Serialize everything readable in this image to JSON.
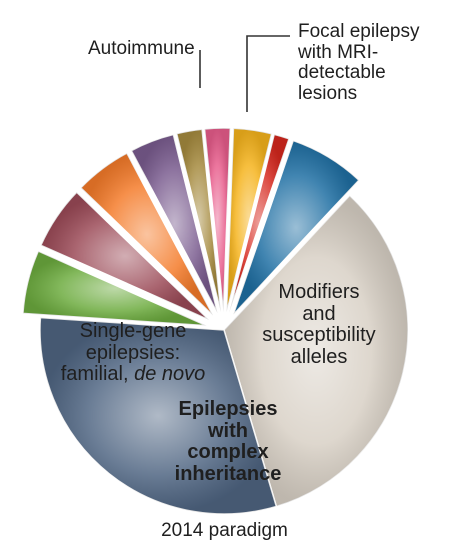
{
  "chart_data": {
    "type": "pie",
    "title": "",
    "caption": "2014 paradigm",
    "slices": [
      {
        "label": "Focal epilepsy with MRI-detectable lesions",
        "value": 6.0,
        "color": "#1f6fa3",
        "exploded": true
      },
      {
        "label": "Modifiers and susceptibility alleles",
        "value": 30.0,
        "color": "#d8d0c5",
        "exploded": false
      },
      {
        "label": "Epilepsies with complex inheritance",
        "value": 27.5,
        "color": "#4f6582",
        "exploded": false
      },
      {
        "label": "",
        "value": 5.0,
        "color": "#6cab3e",
        "exploded": true,
        "group": "Single-gene epilepsies: familial, de novo"
      },
      {
        "label": "",
        "value": 5.0,
        "color": "#9b4a57",
        "exploded": true,
        "group": "Single-gene epilepsies: familial, de novo"
      },
      {
        "label": "",
        "value": 4.5,
        "color": "#f47b2a",
        "exploded": true,
        "group": "Single-gene epilepsies: familial, de novo"
      },
      {
        "label": "",
        "value": 3.5,
        "color": "#7a5c8f",
        "exploded": true,
        "group": "Single-gene epilepsies: familial, de novo"
      },
      {
        "label": "",
        "value": 2.0,
        "color": "#a58a3e",
        "exploded": true,
        "group": "Single-gene epilepsies: familial, de novo"
      },
      {
        "label": "",
        "value": 2.0,
        "color": "#e85d8c",
        "exploded": true,
        "group": "Single-gene epilepsies: familial, de novo"
      },
      {
        "label": "",
        "value": 3.0,
        "color": "#f5b31c",
        "exploded": true,
        "group": "Single-gene epilepsies: familial, de novo"
      },
      {
        "label": "Autoimmune",
        "value": 1.2,
        "color": "#d6281e",
        "exploded": true
      }
    ],
    "annotations": [
      {
        "id": "focal",
        "lines": [
          "Focal epilepsy",
          "with MRI-",
          "detectable",
          "lesions"
        ]
      },
      {
        "id": "autoimmune",
        "lines": [
          "Autoimmune"
        ]
      },
      {
        "id": "modifiers",
        "lines": [
          "Modifiers",
          "and",
          "susceptibility",
          "alleles"
        ]
      },
      {
        "id": "complex",
        "lines": [
          "Epilepsies",
          "with",
          "complex",
          "inheritance"
        ]
      },
      {
        "id": "singlegene",
        "lines": [
          "Single-gene",
          "epilepsies:",
          "familial, "
        ],
        "italic_tail": "de novo"
      }
    ],
    "legend": "none"
  }
}
